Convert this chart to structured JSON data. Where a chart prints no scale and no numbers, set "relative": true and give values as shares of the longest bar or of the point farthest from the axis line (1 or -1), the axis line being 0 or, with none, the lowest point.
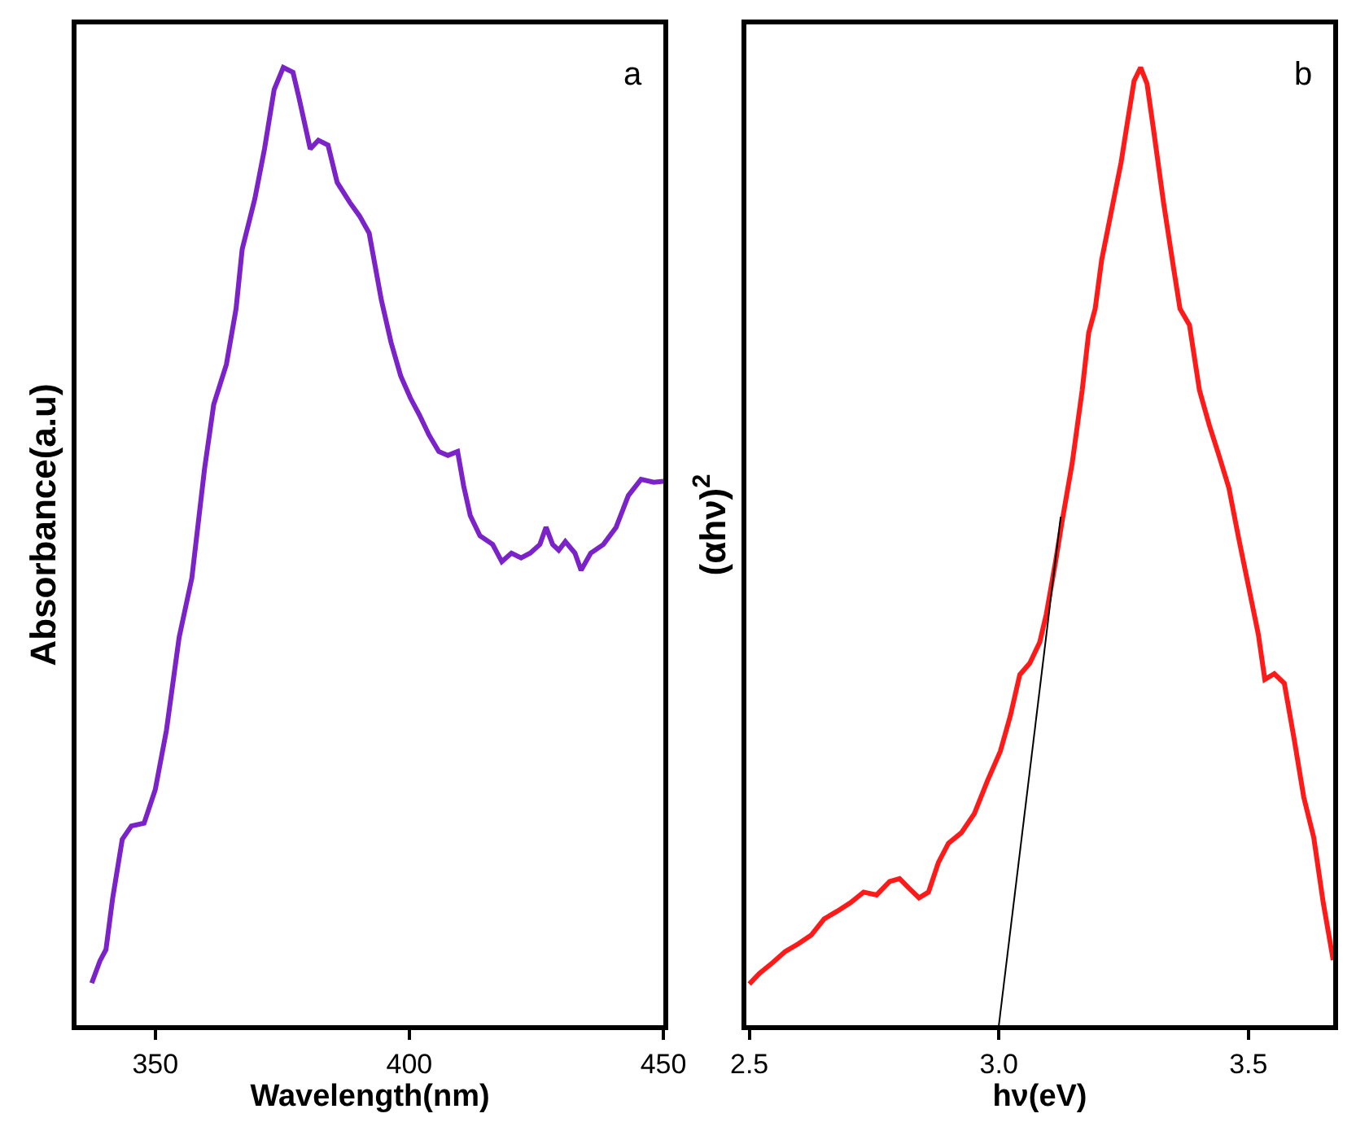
{
  "chart_data": [
    {
      "type": "line",
      "xlabel": "Wavelength(nm)",
      "ylabel": "Absorbance(a.u)",
      "relative": true,
      "xlim": [
        334.5,
        450
      ],
      "xticks": [
        350,
        400,
        450
      ],
      "annotations": [
        "a"
      ],
      "x": [
        337.5,
        339.1,
        340.3,
        341.6,
        343.5,
        345.3,
        347.8,
        350,
        352.2,
        354.7,
        357.2,
        359.7,
        361.5,
        364.0,
        365.9,
        367.1,
        369.6,
        371.5,
        373.4,
        375.2,
        377.1,
        378.3,
        380.5,
        382.1,
        384.0,
        385.8,
        388.3,
        390.2,
        392.1,
        394.5,
        396.4,
        398.3,
        400.2,
        402.0,
        403.9,
        405.8,
        407.6,
        409.5,
        410.7,
        412.0,
        413.9,
        416.4,
        418.2,
        420.1,
        422.0,
        423.8,
        425.7,
        426.9,
        428.2,
        429.4,
        430.7,
        432.6,
        433.8,
        435.7,
        438.2,
        440.7,
        443.1,
        445.6,
        448.1,
        450.0
      ],
      "series": [
        {
          "color": "#7b22c8",
          "values": [
            0.044,
            0.067,
            0.079,
            0.132,
            0.194,
            0.208,
            0.211,
            0.246,
            0.308,
            0.405,
            0.467,
            0.581,
            0.648,
            0.69,
            0.748,
            0.81,
            0.863,
            0.915,
            0.977,
            1.0,
            0.995,
            0.968,
            0.915,
            0.924,
            0.919,
            0.88,
            0.859,
            0.845,
            0.827,
            0.757,
            0.713,
            0.678,
            0.655,
            0.637,
            0.616,
            0.599,
            0.595,
            0.599,
            0.563,
            0.532,
            0.511,
            0.502,
            0.484,
            0.493,
            0.488,
            0.493,
            0.502,
            0.52,
            0.502,
            0.496,
            0.505,
            0.493,
            0.475,
            0.493,
            0.502,
            0.52,
            0.553,
            0.57,
            0.567,
            0.568
          ]
        }
      ]
    },
    {
      "type": "line",
      "xlabel": "hν(eV)",
      "ylabel": "(αhν)$^{2}$",
      "relative": true,
      "xlim": [
        2.494,
        3.67
      ],
      "xticks": [
        {
          "value": 2.5,
          "label": "2.5"
        },
        {
          "value": 3.0,
          "label": "3.0"
        },
        {
          "value": 3.5,
          "label": "3.5"
        }
      ],
      "annotations": [
        "b"
      ],
      "x": [
        2.5,
        2.52,
        2.546,
        2.572,
        2.598,
        2.624,
        2.65,
        2.676,
        2.703,
        2.729,
        2.755,
        2.781,
        2.801,
        2.82,
        2.84,
        2.859,
        2.879,
        2.899,
        2.925,
        2.951,
        2.977,
        3.003,
        3.023,
        3.042,
        3.062,
        3.082,
        3.095,
        3.114,
        3.127,
        3.147,
        3.167,
        3.18,
        3.193,
        3.206,
        3.219,
        3.232,
        3.245,
        3.258,
        3.271,
        3.284,
        3.297,
        3.31,
        3.33,
        3.35,
        3.363,
        3.382,
        3.402,
        3.422,
        3.441,
        3.461,
        3.48,
        3.5,
        3.52,
        3.533,
        3.552,
        3.572,
        3.592,
        3.611,
        3.631,
        3.65,
        3.67
      ],
      "series": [
        {
          "color": "#ff1a1a",
          "values": [
            0.043,
            0.054,
            0.065,
            0.077,
            0.085,
            0.094,
            0.111,
            0.119,
            0.128,
            0.139,
            0.136,
            0.15,
            0.153,
            0.143,
            0.133,
            0.139,
            0.17,
            0.19,
            0.201,
            0.221,
            0.255,
            0.286,
            0.323,
            0.366,
            0.378,
            0.4,
            0.429,
            0.485,
            0.527,
            0.587,
            0.663,
            0.723,
            0.748,
            0.799,
            0.833,
            0.867,
            0.901,
            0.944,
            0.986,
            1.0,
            0.983,
            0.935,
            0.859,
            0.791,
            0.748,
            0.731,
            0.663,
            0.626,
            0.595,
            0.561,
            0.51,
            0.459,
            0.408,
            0.361,
            0.367,
            0.357,
            0.298,
            0.238,
            0.196,
            0.128,
            0.068
          ]
        },
        {
          "type": "line",
          "color": "#000000",
          "x": [
            3.0,
            3.124
          ],
          "values": [
            0,
            0.531
          ]
        }
      ]
    }
  ]
}
